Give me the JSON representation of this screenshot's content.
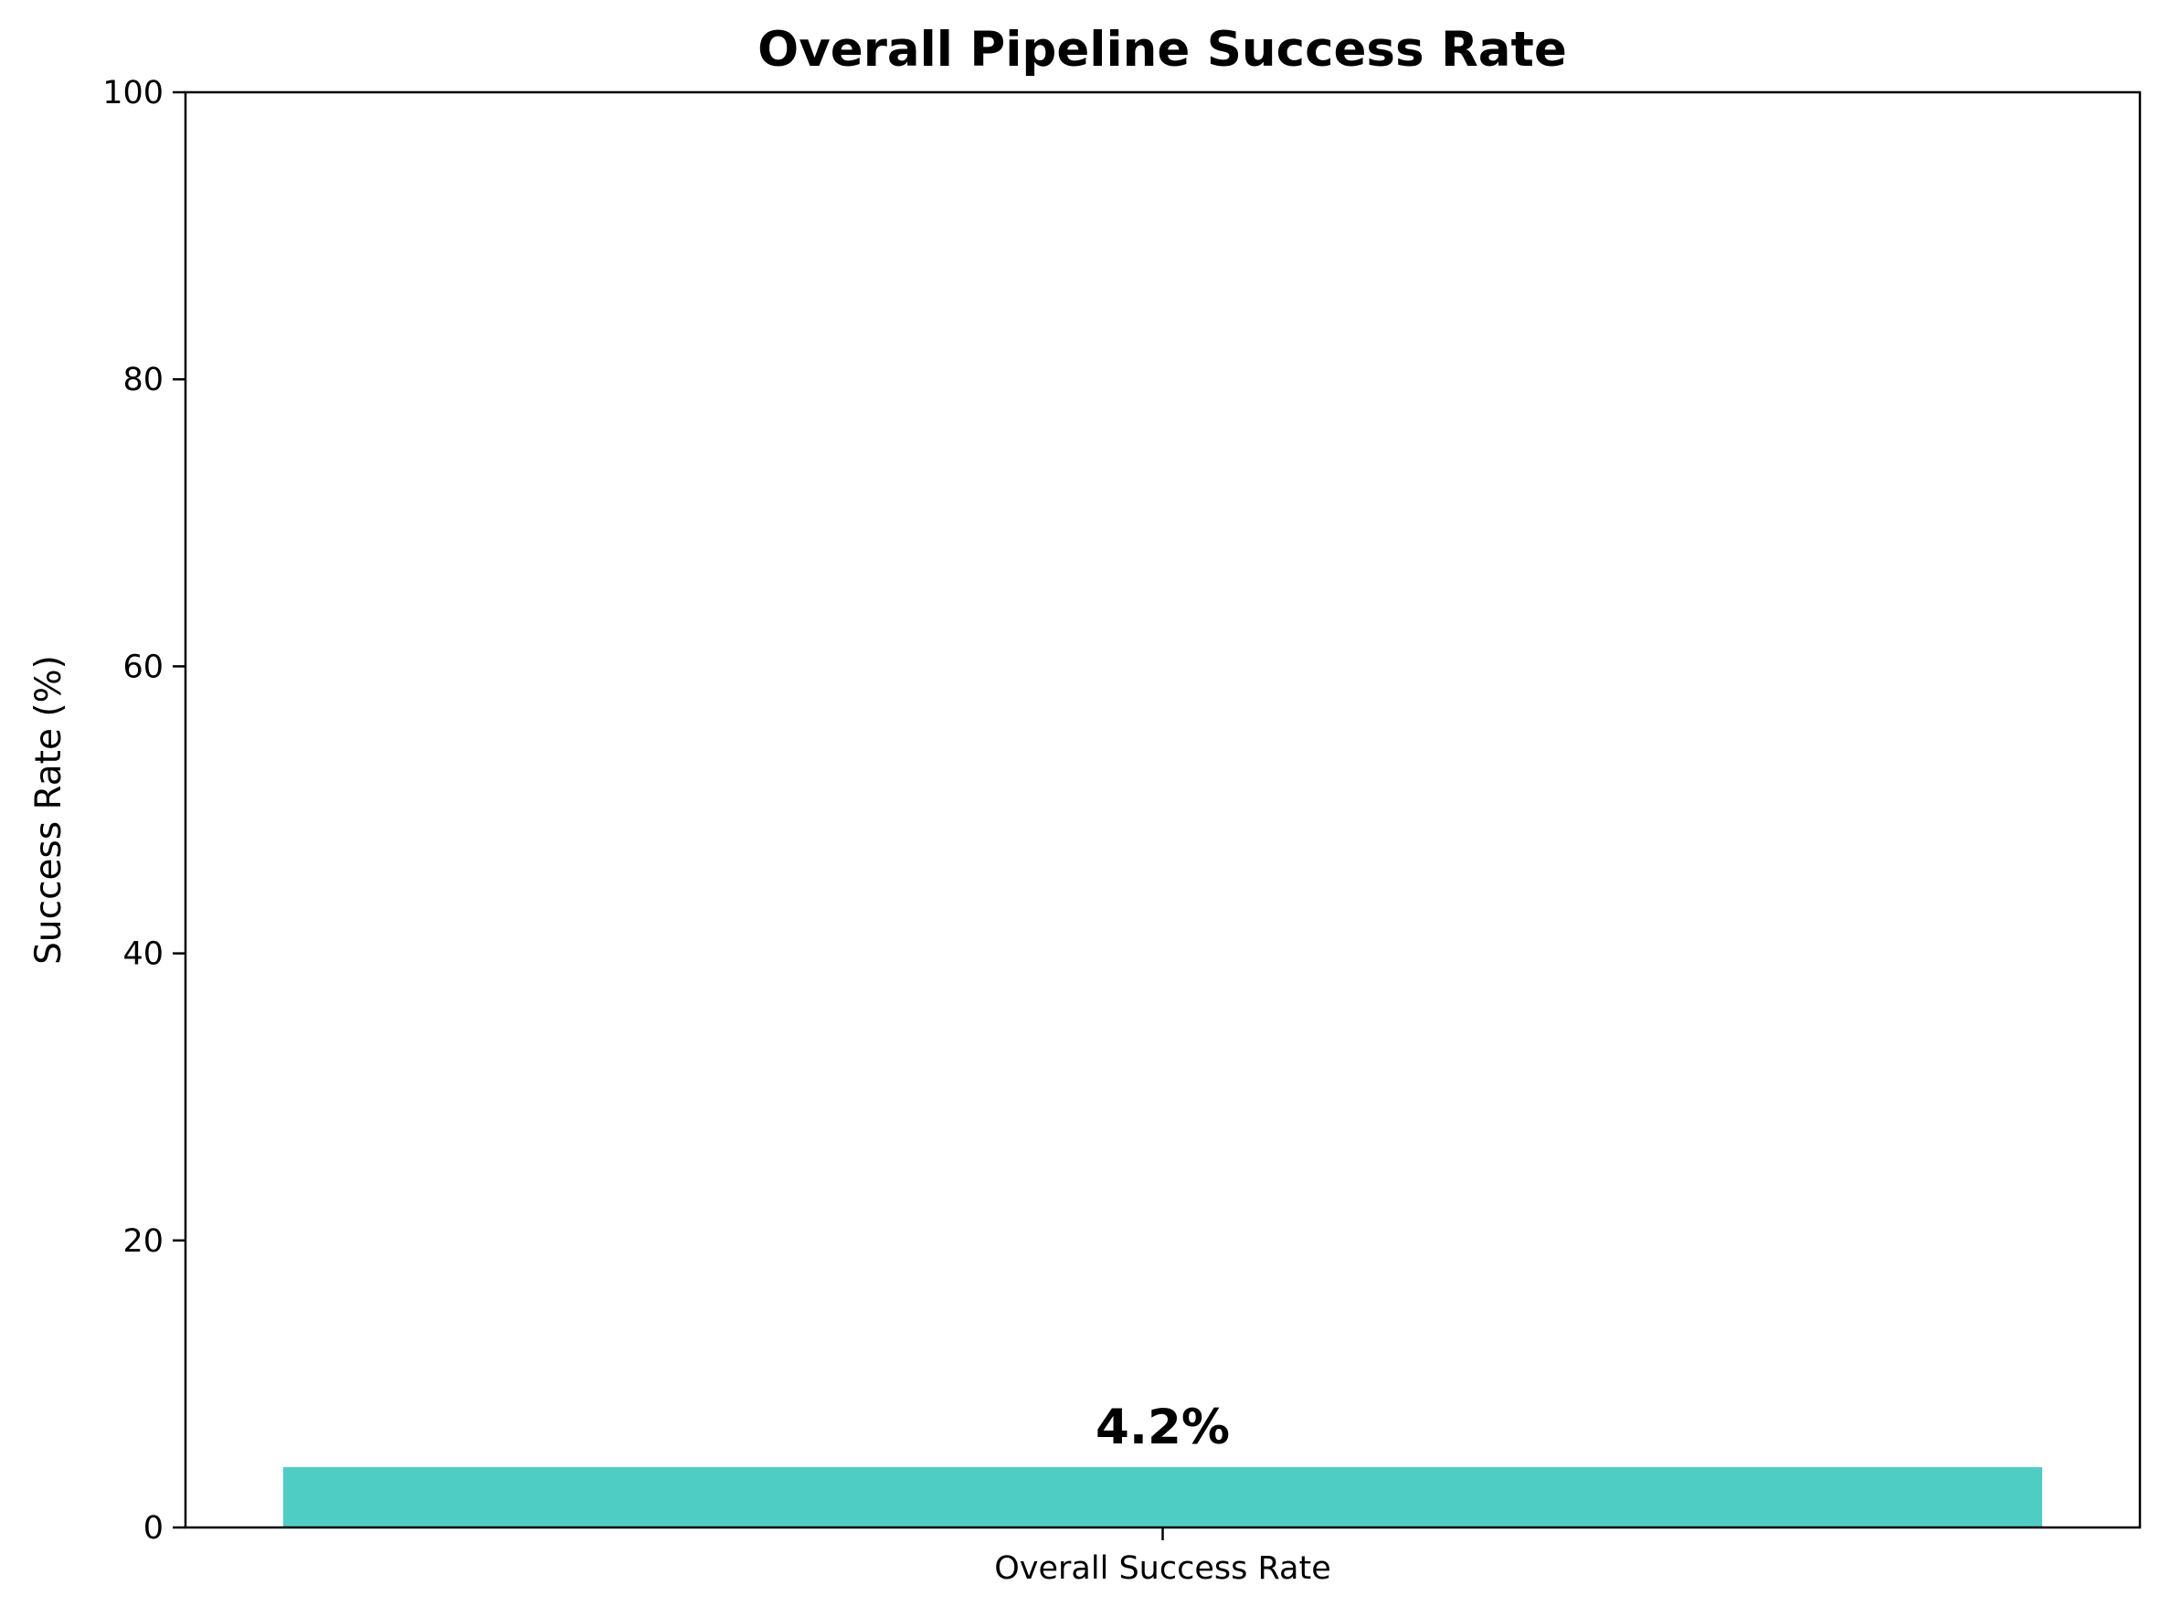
{
  "chart_data": {
    "type": "bar",
    "title": "Overall Pipeline Success Rate",
    "xlabel": "",
    "ylabel": "Success Rate (%)",
    "categories": [
      "Overall Success Rate"
    ],
    "values": [
      4.2
    ],
    "data_labels": [
      "4.2%"
    ],
    "ylim": [
      0,
      100
    ],
    "yticks": [
      0,
      20,
      40,
      60,
      80,
      100
    ],
    "grid": false,
    "legend": "none",
    "colors": {
      "bar": "#4ECDC4",
      "axis": "#000000",
      "text": "#000000",
      "background": "#FFFFFF"
    }
  }
}
